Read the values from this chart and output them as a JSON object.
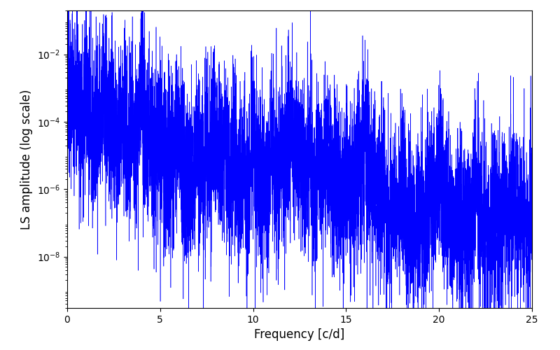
{
  "xlabel": "Frequency [c/d]",
  "ylabel": "LS amplitude (log scale)",
  "xlim": [
    0,
    25
  ],
  "ylim_log": [
    3e-10,
    0.2
  ],
  "line_color": "#0000ff",
  "line_width": 0.4,
  "background_color": "#ffffff",
  "freq_max": 25.0,
  "n_points": 8000,
  "seed": 12345,
  "figsize": [
    8.0,
    5.0
  ],
  "dpi": 100
}
